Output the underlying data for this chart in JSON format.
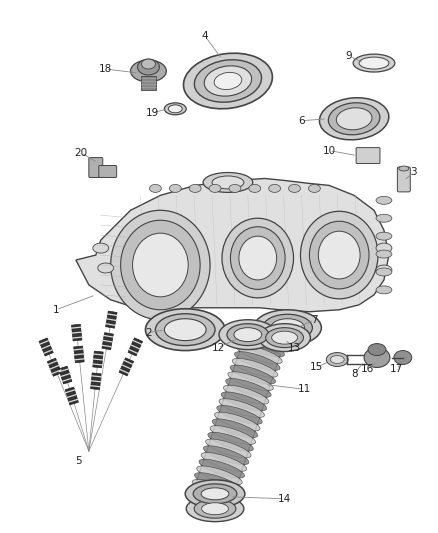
{
  "background_color": "#ffffff",
  "fig_width": 4.38,
  "fig_height": 5.33,
  "dpi": 100,
  "label_color": "#222222",
  "label_fontsize": 7.5,
  "line_color": "#444444",
  "leader_color": "#888888"
}
